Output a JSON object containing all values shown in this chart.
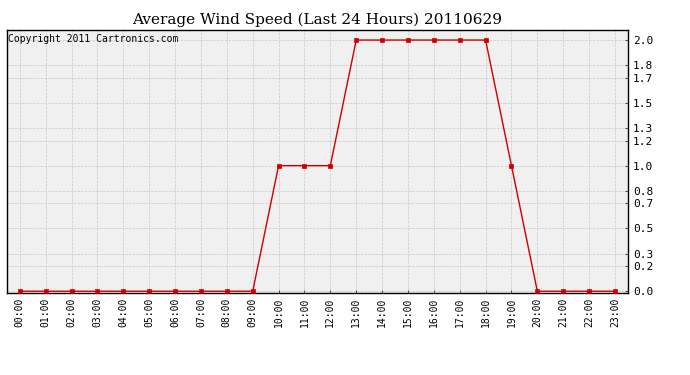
{
  "title": "Average Wind Speed (Last 24 Hours) 20110629",
  "copyright_text": "Copyright 2011 Cartronics.com",
  "x_labels": [
    "00:00",
    "01:00",
    "02:00",
    "03:00",
    "04:00",
    "05:00",
    "06:00",
    "07:00",
    "08:00",
    "09:00",
    "10:00",
    "11:00",
    "12:00",
    "13:00",
    "14:00",
    "15:00",
    "16:00",
    "17:00",
    "18:00",
    "19:00",
    "20:00",
    "21:00",
    "22:00",
    "23:00"
  ],
  "x_values": [
    0,
    1,
    2,
    3,
    4,
    5,
    6,
    7,
    8,
    9,
    10,
    11,
    12,
    13,
    14,
    15,
    16,
    17,
    18,
    19,
    20,
    21,
    22,
    23
  ],
  "y_values": [
    0.0,
    0.0,
    0.0,
    0.0,
    0.0,
    0.0,
    0.0,
    0.0,
    0.0,
    0.0,
    1.0,
    1.0,
    1.0,
    2.0,
    2.0,
    2.0,
    2.0,
    2.0,
    2.0,
    1.0,
    0.0,
    0.0,
    0.0,
    0.0
  ],
  "y_ticks": [
    0.0,
    0.2,
    0.3,
    0.5,
    0.7,
    0.8,
    1.0,
    1.2,
    1.3,
    1.5,
    1.7,
    1.8,
    2.0
  ],
  "ylim": [
    -0.01,
    2.08
  ],
  "line_color": "#cc0000",
  "marker": "s",
  "marker_size": 2.5,
  "background_color": "#ffffff",
  "plot_bg_color": "#f0f0f0",
  "grid_color": "#c8c8c8",
  "title_fontsize": 11,
  "copyright_fontsize": 7,
  "tick_fontsize": 7,
  "ytick_fontsize": 8
}
